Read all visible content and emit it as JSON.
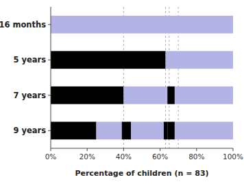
{
  "chart_data": {
    "type": "bar",
    "orientation": "horizontal",
    "stacked": true,
    "grid": false,
    "categories": [
      "16 months",
      "5 years",
      "7 years",
      "9 years"
    ],
    "series": [
      {
        "values": [
          100,
          63,
          40,
          25
        ],
        "colors": [
          "#b3b3e6",
          "#000000",
          "#000000",
          "#000000"
        ]
      },
      {
        "values": [
          null,
          37,
          24,
          14
        ],
        "colors": [
          null,
          "#b3b3e6",
          "#b3b3e6",
          "#b3b3e6"
        ]
      },
      {
        "values": [
          null,
          null,
          4,
          5
        ],
        "colors": [
          null,
          null,
          "#000000",
          "#000000"
        ]
      },
      {
        "values": [
          null,
          null,
          32,
          18
        ],
        "colors": [
          null,
          null,
          "#b3b3e6",
          "#b3b3e6"
        ]
      },
      {
        "values": [
          null,
          null,
          null,
          2
        ],
        "colors": [
          null,
          null,
          null,
          "#000000"
        ]
      },
      {
        "values": [
          null,
          null,
          null,
          4
        ],
        "colors": [
          null,
          null,
          null,
          "#000000"
        ]
      },
      {
        "values": [
          null,
          null,
          null,
          32
        ],
        "colors": [
          null,
          null,
          null,
          "#b3b3e6"
        ]
      }
    ],
    "xlabel": "Percentage of children (n = 83)",
    "xlim": [
      0,
      100
    ],
    "xticks": [
      {
        "value": 0,
        "label": "0%"
      },
      {
        "value": 20,
        "label": "20%"
      },
      {
        "value": 40,
        "label": "40%"
      },
      {
        "value": 60,
        "label": "60%"
      },
      {
        "value": 80,
        "label": "80%"
      },
      {
        "value": 100,
        "label": "100%"
      }
    ],
    "reference_lines_x": [
      40,
      63,
      65,
      70
    ]
  }
}
